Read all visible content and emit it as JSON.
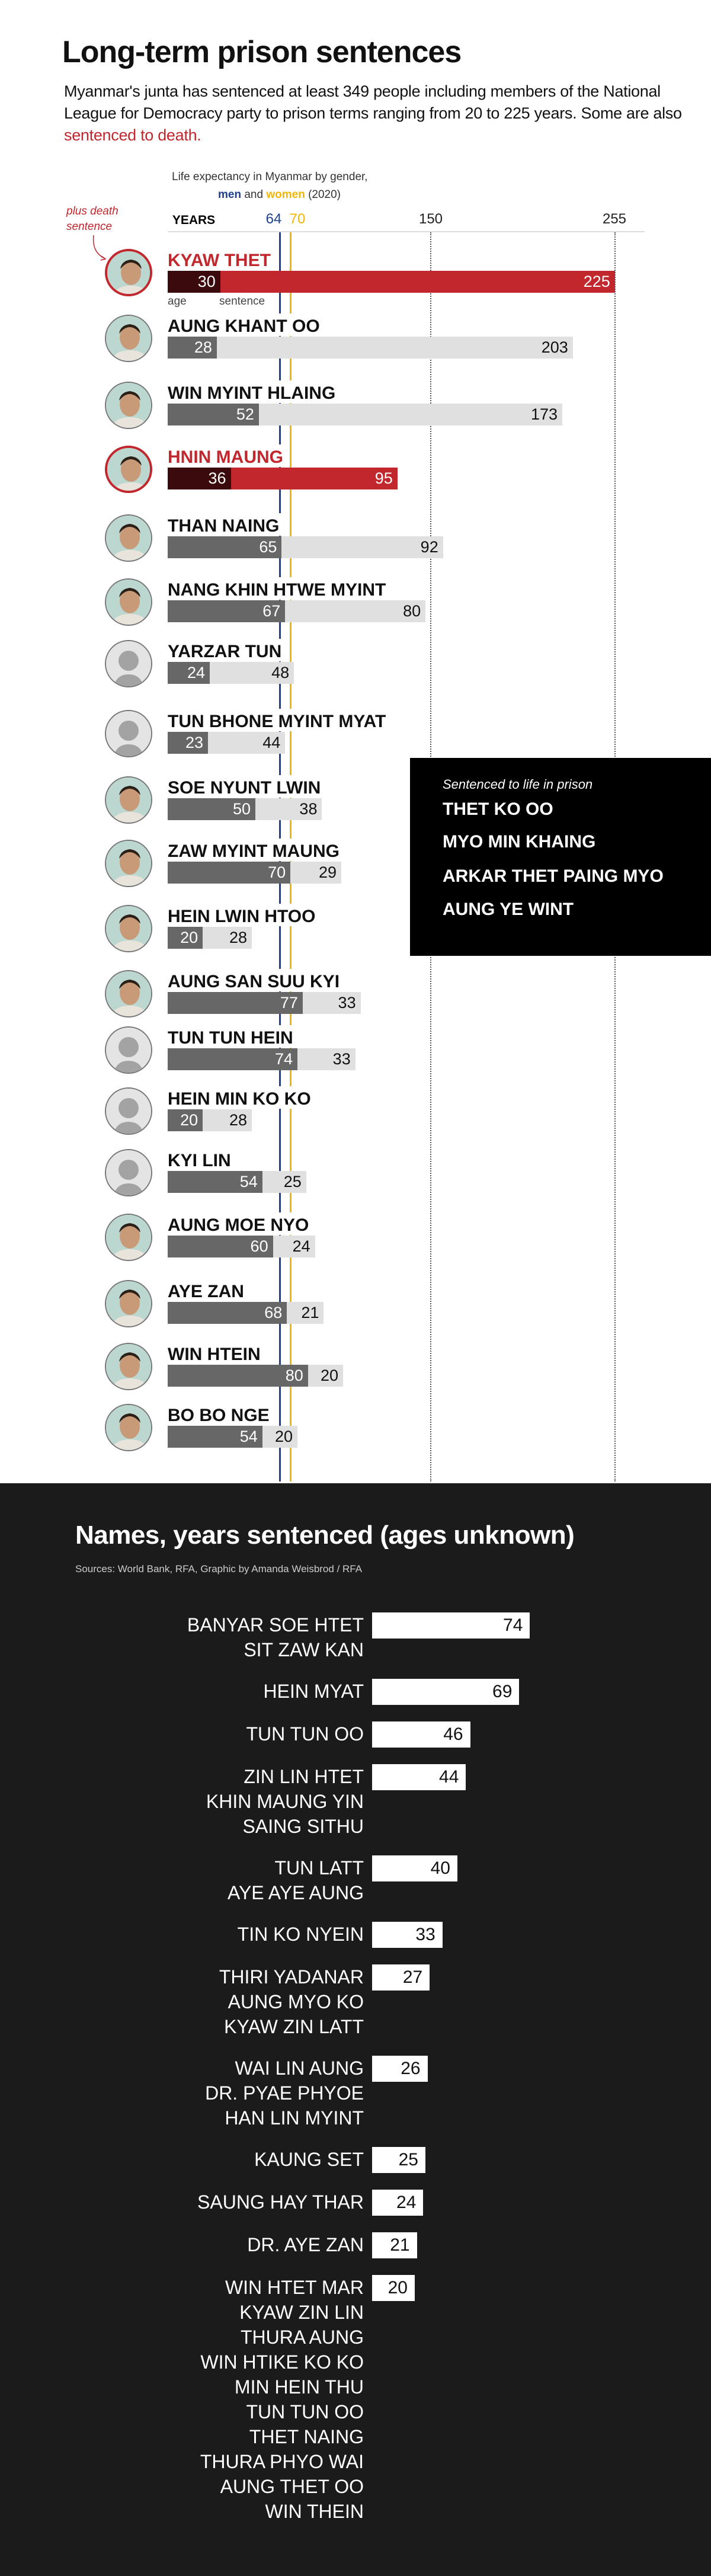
{
  "header": {
    "title": "Long-term prison sentences",
    "subtitle_before": "Myanmar's junta has sentenced at least 349 people including members of the National League for Democracy party to prison terms ranging from 20 to 225 years. Some are also ",
    "subtitle_red": "sentenced to death."
  },
  "legend": {
    "life_expectancy_label": "Life expectancy in Myanmar by gender,",
    "men": "men",
    "and": "and",
    "women": "women",
    "year": "(2020)",
    "death_note_line1": "plus death",
    "death_note_line2": "sentence",
    "age_label": "age",
    "sentence_label": "sentence"
  },
  "colors": {
    "men": "#1f3f8f",
    "women": "#f2b705",
    "death": "#c1272d",
    "death_age": "#3a0a0c",
    "age": "#676767",
    "sentence": "#e0e0e0"
  },
  "chart_data": {
    "type": "bar",
    "stacked": true,
    "x_axis_label": "YEARS",
    "ticks": [
      "64",
      "70",
      "150",
      "255"
    ],
    "xlim": [
      0,
      255
    ],
    "reference_lines": [
      {
        "name": "men",
        "value": 64
      },
      {
        "name": "women",
        "value": 70
      }
    ],
    "gridlines": [
      150,
      255
    ],
    "rows": [
      {
        "name": "KYAW THET",
        "age": 30,
        "sentence": 225,
        "death": true,
        "photo": true
      },
      {
        "name": "AUNG KHANT OO",
        "age": 28,
        "sentence": 203,
        "death": false,
        "photo": true
      },
      {
        "name": "WIN MYINT HLAING",
        "age": 52,
        "sentence": 173,
        "death": false,
        "photo": true
      },
      {
        "name": "HNIN MAUNG",
        "age": 36,
        "sentence": 95,
        "death": true,
        "photo": true
      },
      {
        "name": "THAN NAING",
        "age": 65,
        "sentence": 92,
        "death": false,
        "photo": true
      },
      {
        "name": "NANG KHIN HTWE MYINT",
        "age": 67,
        "sentence": 80,
        "death": false,
        "photo": true
      },
      {
        "name": "YARZAR TUN",
        "age": 24,
        "sentence": 48,
        "death": false,
        "photo": false
      },
      {
        "name": "TUN BHONE MYINT MYAT",
        "age": 23,
        "sentence": 44,
        "death": false,
        "photo": false
      },
      {
        "name": "SOE NYUNT LWIN",
        "age": 50,
        "sentence": 38,
        "death": false,
        "photo": true
      },
      {
        "name": "ZAW MYINT MAUNG",
        "age": 70,
        "sentence": 29,
        "death": false,
        "photo": true
      },
      {
        "name": "HEIN LWIN HTOO",
        "age": 20,
        "sentence": 28,
        "death": false,
        "photo": true
      },
      {
        "name": "AUNG SAN SUU KYI",
        "age": 77,
        "sentence": 33,
        "death": false,
        "photo": true
      },
      {
        "name": "TUN TUN HEIN",
        "age": 74,
        "sentence": 33,
        "death": false,
        "photo": false
      },
      {
        "name": "HEIN MIN KO KO",
        "age": 20,
        "sentence": 28,
        "death": false,
        "photo": false
      },
      {
        "name": "KYI LIN",
        "age": 54,
        "sentence": 25,
        "death": false,
        "photo": false
      },
      {
        "name": "AUNG MOE NYO",
        "age": 60,
        "sentence": 24,
        "death": false,
        "photo": true
      },
      {
        "name": "AYE ZAN",
        "age": 68,
        "sentence": 21,
        "death": false,
        "photo": true
      },
      {
        "name": "WIN HTEIN",
        "age": 80,
        "sentence": 20,
        "death": false,
        "photo": true
      },
      {
        "name": "BO BO NGE",
        "age": 54,
        "sentence": 20,
        "death": false,
        "photo": true
      }
    ]
  },
  "life_sentences": {
    "title": "Sentenced to life in prison",
    "names": [
      "THET KO OO",
      "MYO MIN KHAING",
      "ARKAR THET PAING MYO",
      "AUNG YE WINT"
    ]
  },
  "unknown_ages": {
    "title": "Names, years sentenced (ages unknown)",
    "sources": "Sources: World Bank, RFA, Graphic by Amanda Weisbrod / RFA",
    "groups": [
      {
        "names": [
          "BANYAR SOE HTET",
          "SIT ZAW KAN"
        ],
        "years": 74
      },
      {
        "names": [
          "HEIN MYAT"
        ],
        "years": 69
      },
      {
        "names": [
          "TUN TUN OO"
        ],
        "years": 46
      },
      {
        "names": [
          "ZIN LIN HTET",
          "KHIN MAUNG YIN",
          "SAING SITHU"
        ],
        "years": 44
      },
      {
        "names": [
          "TUN LATT",
          "AYE AYE AUNG"
        ],
        "years": 40
      },
      {
        "names": [
          "TIN KO NYEIN"
        ],
        "years": 33
      },
      {
        "names": [
          "THIRI YADANAR",
          "AUNG MYO KO",
          "KYAW ZIN LATT"
        ],
        "years": 27
      },
      {
        "names": [
          "WAI LIN AUNG",
          "DR. PYAE PHYOE",
          "HAN LIN MYINT"
        ],
        "years": 26
      },
      {
        "names": [
          "KAUNG SET"
        ],
        "years": 25
      },
      {
        "names": [
          "SAUNG HAY THAR"
        ],
        "years": 24
      },
      {
        "names": [
          "DR. AYE ZAN"
        ],
        "years": 21
      },
      {
        "names": [
          "WIN HTET MAR",
          "KYAW ZIN LIN",
          "THURA AUNG",
          "WIN HTIKE KO KO",
          "MIN HEIN THU",
          "TUN TUN OO",
          "THET NAING",
          "THURA PHYO WAI",
          "AUNG THET OO",
          "WIN THEIN"
        ],
        "years": 20
      }
    ]
  }
}
